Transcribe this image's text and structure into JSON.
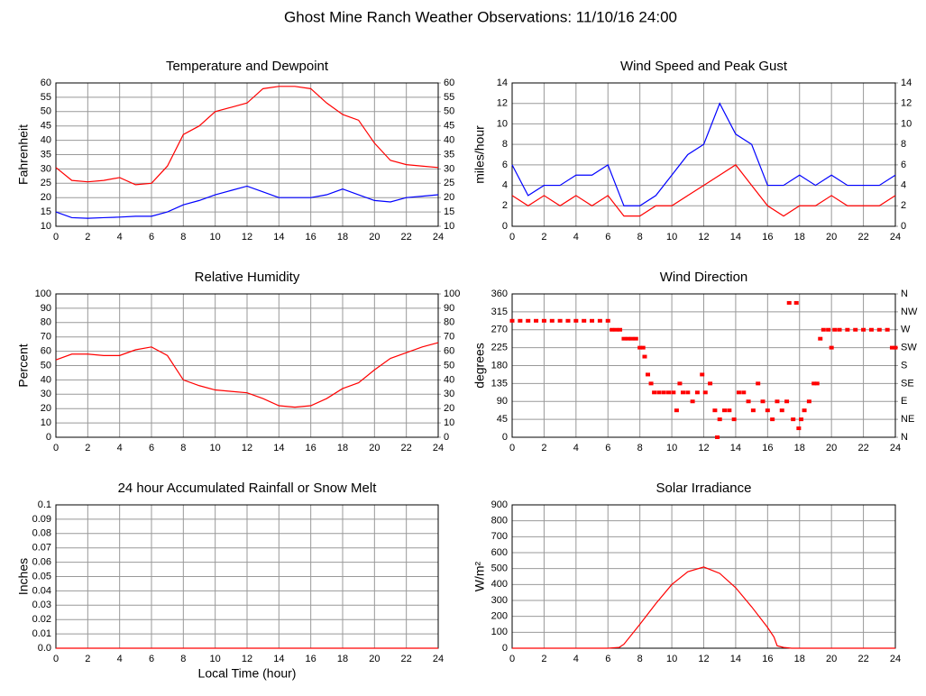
{
  "title": "Ghost Mine Ranch Weather Observations: 11/10/16 24:00",
  "chart_data": [
    {
      "type": "line",
      "title": "Temperature and Dewpoint",
      "ylabel": "Fahrenheit",
      "grid": true,
      "x": [
        0,
        1,
        2,
        3,
        4,
        5,
        6,
        7,
        8,
        9,
        10,
        11,
        12,
        13,
        14,
        15,
        16,
        17,
        18,
        19,
        20,
        21,
        22,
        23,
        24
      ],
      "series": [
        {
          "color": "#ff0000",
          "values": [
            30.5,
            26,
            25.5,
            26,
            27,
            24.5,
            25,
            31,
            42,
            45,
            50,
            51.5,
            53,
            58,
            58.8,
            58.8,
            58,
            53,
            49,
            47,
            39,
            33,
            31.5,
            31,
            30.5
          ]
        },
        {
          "color": "#0000ff",
          "values": [
            15,
            13,
            12.8,
            13,
            13.2,
            13.5,
            13.5,
            15,
            17.5,
            19,
            21,
            22.5,
            24,
            22,
            20,
            20,
            20,
            21,
            23,
            21,
            19,
            18.5,
            20,
            20.5,
            21
          ]
        }
      ],
      "xlim": [
        0,
        24
      ],
      "xticks": [
        0,
        2,
        4,
        6,
        8,
        10,
        12,
        14,
        16,
        18,
        20,
        22,
        24
      ],
      "ylim": [
        10,
        60
      ],
      "yticks": [
        10,
        15,
        20,
        25,
        30,
        35,
        40,
        45,
        50,
        55,
        60
      ],
      "y2lim": [
        10,
        60
      ],
      "y2ticks": [
        10,
        15,
        20,
        25,
        30,
        35,
        40,
        45,
        50,
        55,
        60
      ]
    },
    {
      "type": "line",
      "title": "Wind Speed and Peak Gust",
      "ylabel": "miles/hour",
      "grid": true,
      "x": [
        0,
        1,
        2,
        3,
        4,
        5,
        6,
        7,
        8,
        9,
        10,
        11,
        12,
        13,
        14,
        15,
        16,
        17,
        18,
        19,
        20,
        21,
        22,
        23,
        24
      ],
      "series": [
        {
          "color": "#0000ff",
          "values": [
            6,
            3,
            4,
            4,
            5,
            5,
            6,
            2,
            2,
            3,
            5,
            7,
            8,
            12,
            9,
            8,
            4,
            4,
            5,
            4,
            5,
            4,
            4,
            4,
            5
          ]
        },
        {
          "color": "#ff0000",
          "values": [
            3,
            2,
            3,
            2,
            3,
            2,
            3,
            1,
            1,
            2,
            2,
            3,
            4,
            5,
            6,
            4,
            2,
            1,
            2,
            2,
            3,
            2,
            2,
            2,
            3
          ]
        }
      ],
      "xlim": [
        0,
        24
      ],
      "xticks": [
        0,
        2,
        4,
        6,
        8,
        10,
        12,
        14,
        16,
        18,
        20,
        22,
        24
      ],
      "ylim": [
        0,
        14
      ],
      "yticks": [
        0,
        2,
        4,
        6,
        8,
        10,
        12,
        14
      ],
      "y2lim": [
        0,
        14
      ],
      "y2ticks": [
        0,
        2,
        4,
        6,
        8,
        10,
        12,
        14
      ]
    },
    {
      "type": "line",
      "title": "Relative Humidity",
      "ylabel": "Percent",
      "grid": true,
      "x": [
        0,
        1,
        2,
        3,
        4,
        5,
        6,
        7,
        8,
        9,
        10,
        11,
        12,
        13,
        14,
        15,
        16,
        17,
        18,
        19,
        20,
        21,
        22,
        23,
        24
      ],
      "series": [
        {
          "color": "#ff0000",
          "values": [
            54,
            58,
            58,
            57,
            57,
            61,
            63,
            57,
            40,
            36,
            33,
            32,
            31,
            27,
            22,
            21,
            22,
            27,
            34,
            38,
            47,
            55,
            59,
            63,
            66
          ]
        }
      ],
      "xlim": [
        0,
        24
      ],
      "xticks": [
        0,
        2,
        4,
        6,
        8,
        10,
        12,
        14,
        16,
        18,
        20,
        22,
        24
      ],
      "ylim": [
        0,
        100
      ],
      "yticks": [
        0,
        10,
        20,
        30,
        40,
        50,
        60,
        70,
        80,
        90,
        100
      ],
      "y2lim": [
        0,
        100
      ],
      "y2ticks": [
        0,
        10,
        20,
        30,
        40,
        50,
        60,
        70,
        80,
        90,
        100
      ]
    },
    {
      "type": "scatter",
      "title": "Wind Direction",
      "ylabel": "degrees",
      "grid": true,
      "x": [
        0,
        0.5,
        1,
        1.5,
        2,
        2.5,
        3,
        3.5,
        4,
        4.5,
        5,
        5.5,
        6,
        6.25,
        6.5,
        6.75,
        7,
        7.25,
        7.5,
        7.75,
        8,
        8.2,
        8.3,
        8.5,
        8.7,
        8.9,
        9.2,
        9.5,
        9.8,
        10.1,
        10.3,
        10.5,
        10.7,
        11,
        11.3,
        11.6,
        11.9,
        12.1,
        12.4,
        12.7,
        12.85,
        13,
        13.3,
        13.6,
        13.9,
        14.2,
        14.5,
        14.8,
        15.1,
        15.4,
        15.7,
        16,
        16.3,
        16.6,
        16.9,
        17.2,
        17.35,
        17.6,
        17.8,
        17.95,
        18.1,
        18.3,
        18.6,
        18.9,
        19.1,
        19.3,
        19.5,
        19.8,
        20,
        20.2,
        20.5,
        21,
        21.5,
        22,
        22.5,
        23,
        23.5,
        23.8,
        24
      ],
      "series": [
        {
          "color": "#ff0000",
          "values": [
            292.5,
            292.5,
            292.5,
            292.5,
            292.5,
            292.5,
            292.5,
            292.5,
            292.5,
            292.5,
            292.5,
            292.5,
            292.5,
            270,
            270,
            270,
            247.5,
            247.5,
            247.5,
            247.5,
            225,
            225,
            202.5,
            157.5,
            135,
            112.5,
            112.5,
            112.5,
            112.5,
            112.5,
            67.5,
            135,
            112.5,
            112.5,
            90,
            112.5,
            157.5,
            112.5,
            135,
            67.5,
            0,
            45,
            67.5,
            67.5,
            45,
            112.5,
            112.5,
            90,
            67.5,
            135,
            90,
            67.5,
            45,
            90,
            67.5,
            90,
            337.5,
            45,
            337.5,
            22.5,
            45,
            67.5,
            90,
            135,
            135,
            247.5,
            270,
            270,
            225,
            270,
            270,
            270,
            270,
            270,
            270,
            270,
            270,
            225,
            225
          ]
        }
      ],
      "xlim": [
        0,
        24
      ],
      "xticks": [
        0,
        2,
        4,
        6,
        8,
        10,
        12,
        14,
        16,
        18,
        20,
        22,
        24
      ],
      "ylim": [
        0,
        360
      ],
      "yticks": [
        0,
        45,
        90,
        135,
        180,
        225,
        270,
        315,
        360
      ],
      "y2lim": [
        0,
        360
      ],
      "y2ticks": [
        {
          "value": 0,
          "label": "N"
        },
        {
          "value": 45,
          "label": "NE"
        },
        {
          "value": 90,
          "label": "E"
        },
        {
          "value": 135,
          "label": "SE"
        },
        {
          "value": 180,
          "label": "S"
        },
        {
          "value": 225,
          "label": "SW"
        },
        {
          "value": 270,
          "label": "W"
        },
        {
          "value": 315,
          "label": "NW"
        },
        {
          "value": 360,
          "label": "N"
        }
      ]
    },
    {
      "type": "line",
      "title": "24 hour Accumulated Rainfall or Snow Melt",
      "ylabel": "Inches",
      "xlabel": "Local Time (hour)",
      "grid": true,
      "x": [
        0,
        24
      ],
      "series": [
        {
          "color": "#ff0000",
          "values": [
            0,
            0
          ]
        }
      ],
      "xlim": [
        0,
        24
      ],
      "xticks": [
        0,
        2,
        4,
        6,
        8,
        10,
        12,
        14,
        16,
        18,
        20,
        22,
        24
      ],
      "ylim": [
        0,
        0.1
      ],
      "yticks": [
        {
          "value": 0,
          "label": "0.0"
        },
        0.01,
        0.02,
        0.03,
        0.04,
        0.05,
        0.06,
        0.07,
        0.08,
        0.09,
        0.1
      ]
    },
    {
      "type": "line",
      "title": "Solar Irradiance",
      "ylabel": "W/m²",
      "grid": true,
      "x": [
        0,
        6,
        6.7,
        7,
        8,
        9,
        10,
        11,
        12,
        13,
        14,
        15,
        16,
        16.4,
        16.6,
        17,
        17.5,
        24
      ],
      "series": [
        {
          "color": "#ff0000",
          "values": [
            0,
            0,
            5,
            25,
            150,
            280,
            400,
            480,
            510,
            470,
            380,
            260,
            130,
            70,
            15,
            5,
            0,
            0
          ]
        }
      ],
      "xlim": [
        0,
        24
      ],
      "xticks": [
        0,
        2,
        4,
        6,
        8,
        10,
        12,
        14,
        16,
        18,
        20,
        22,
        24
      ],
      "ylim": [
        0,
        900
      ],
      "yticks": [
        0,
        100,
        200,
        300,
        400,
        500,
        600,
        700,
        800,
        900
      ]
    }
  ]
}
